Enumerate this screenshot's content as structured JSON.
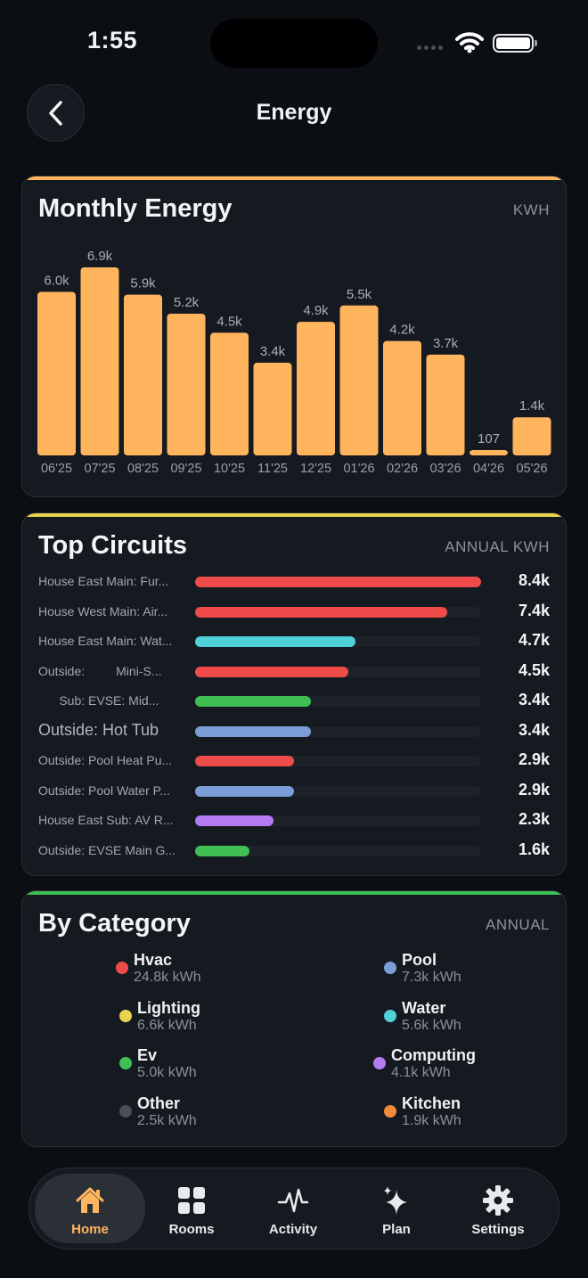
{
  "status_bar": {
    "time": "1:55"
  },
  "header": {
    "title": "Energy"
  },
  "monthly": {
    "title": "Monthly Energy",
    "unit": "KWH",
    "accent": "#ffb55e",
    "bar_color": "#ffb55e"
  },
  "chart_data": {
    "type": "bar",
    "categories": [
      "06'25",
      "07'25",
      "08'25",
      "09'25",
      "10'25",
      "11'25",
      "12'25",
      "01'26",
      "02'26",
      "03'26",
      "04'26",
      "05'26"
    ],
    "values": [
      6000,
      6900,
      5900,
      5200,
      4500,
      3400,
      4900,
      5500,
      4200,
      3700,
      107,
      1400
    ],
    "value_labels": [
      "6.0k",
      "6.9k",
      "5.9k",
      "5.2k",
      "4.5k",
      "3.4k",
      "4.9k",
      "5.5k",
      "4.2k",
      "3.7k",
      "107",
      "1.4k"
    ],
    "ylabel": "KWH",
    "ylim": [
      0,
      6900
    ],
    "grid": false
  },
  "circuits": {
    "title": "Top Circuits",
    "unit": "ANNUAL KWH",
    "accent": "#e8d44d",
    "max": 8400,
    "items": [
      {
        "name": "House East Main: Fur...",
        "value": 8400,
        "label": "8.4k",
        "color": "#ef4b4b"
      },
      {
        "name": "House West Main: Air...",
        "value": 7400,
        "label": "7.4k",
        "color": "#ef4b4b"
      },
      {
        "name": "House East Main: Wat...",
        "value": 4700,
        "label": "4.7k",
        "color": "#4fd1d9"
      },
      {
        "name": "Outside:         Mini-S...",
        "value": 4500,
        "label": "4.5k",
        "color": "#ef4b4b"
      },
      {
        "name": "      Sub: EVSE: Mid...",
        "value": 3400,
        "label": "3.4k",
        "color": "#3fbf54"
      },
      {
        "name": "Outside: Hot Tub",
        "value": 3400,
        "label": "3.4k",
        "color": "#7c9ed6",
        "big": true
      },
      {
        "name": "Outside: Pool Heat Pu...",
        "value": 2900,
        "label": "2.9k",
        "color": "#ef4b4b"
      },
      {
        "name": "Outside: Pool Water P...",
        "value": 2900,
        "label": "2.9k",
        "color": "#7c9ed6"
      },
      {
        "name": "House East Sub: AV R...",
        "value": 2300,
        "label": "2.3k",
        "color": "#b57bf2"
      },
      {
        "name": "Outside: EVSE Main G...",
        "value": 1600,
        "label": "1.6k",
        "color": "#3fbf54"
      }
    ]
  },
  "category": {
    "title": "By Category",
    "unit": "ANNUAL",
    "accent": "#3fbf54",
    "left": [
      {
        "name": "Hvac",
        "value": "24.8k kWh",
        "color": "#ef4b4b"
      },
      {
        "name": "Lighting",
        "value": "6.6k kWh",
        "color": "#e8d44d"
      },
      {
        "name": "Ev",
        "value": "5.0k kWh",
        "color": "#3fbf54"
      },
      {
        "name": "Other",
        "value": "2.5k kWh",
        "color": "#4a4f57"
      }
    ],
    "right": [
      {
        "name": "Pool",
        "value": "7.3k kWh",
        "color": "#7c9ed6"
      },
      {
        "name": "Water",
        "value": "5.6k kWh",
        "color": "#4fd1d9"
      },
      {
        "name": "Computing",
        "value": "4.1k kWh",
        "color": "#b57bf2"
      },
      {
        "name": "Kitchen",
        "value": "1.9k kWh",
        "color": "#ef8a3c"
      }
    ]
  },
  "tabs": [
    {
      "label": "Home",
      "icon": "home-icon",
      "active": true
    },
    {
      "label": "Rooms",
      "icon": "grid-icon",
      "active": false
    },
    {
      "label": "Activity",
      "icon": "activity-icon",
      "active": false
    },
    {
      "label": "Plan",
      "icon": "sparkle-icon",
      "active": false
    },
    {
      "label": "Settings",
      "icon": "gear-icon",
      "active": false
    }
  ]
}
